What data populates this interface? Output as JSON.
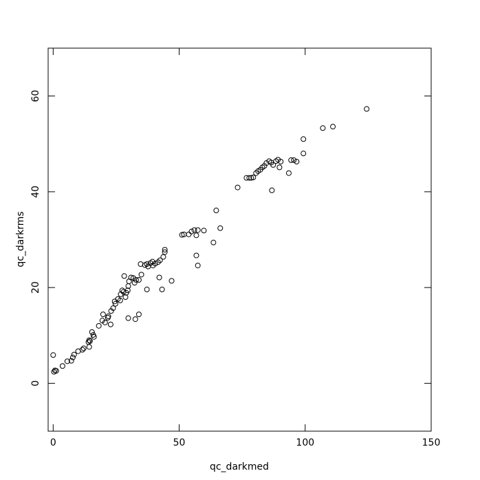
{
  "chart_data": {
    "type": "scatter",
    "x_label": "qc_darkmed",
    "y_label": "qc_darkrms",
    "xlim": [
      -2,
      150
    ],
    "ylim": [
      -10,
      70
    ],
    "xticks": [
      0,
      50,
      100,
      150
    ],
    "yticks": [
      0,
      20,
      40,
      60
    ],
    "color": "#000000",
    "x": [
      0,
      0.3,
      0.7,
      1.2,
      3.7,
      5.6,
      7.2,
      7.8,
      8.3,
      9.9,
      11.6,
      12.1,
      14,
      14.3,
      14.6,
      14.3,
      15.9,
      16.2,
      15.4,
      18.1,
      19.5,
      19.8,
      20.6,
      21.7,
      21.9,
      22.8,
      23,
      23.8,
      24.4,
      24.7,
      25.7,
      26.6,
      26.8,
      27.4,
      27.9,
      29,
      29.6,
      28.7,
      28.2,
      29.8,
      30.1,
      29.8,
      30.9,
      31.8,
      32.3,
      32.6,
      32.9,
      34,
      34,
      34.7,
      35,
      36.4,
      37.2,
      37.2,
      37.7,
      38.6,
      39.4,
      39.6,
      40.5,
      41.6,
      42.1,
      42.4,
      43.2,
      43.7,
      44.3,
      44.3,
      47,
      51.1,
      51.9,
      53.8,
      54.9,
      56,
      57.4,
      56.8,
      56.8,
      57.4,
      59.8,
      63.6,
      64.7,
      66.3,
      73.2,
      76.7,
      77.8,
      78.6,
      79.4,
      80.5,
      81.3,
      82.2,
      83,
      83.8,
      84.6,
      85.7,
      86.5,
      86.8,
      87.3,
      88.4,
      89.2,
      89.8,
      90.3,
      93.5,
      94.4,
      95.5,
      96.6,
      99.3,
      99.3,
      107,
      111,
      124.4
    ],
    "y": [
      5.9,
      2.4,
      2.7,
      2.6,
      3.6,
      4.6,
      4.7,
      5.4,
      6,
      6.7,
      7,
      7.3,
      8.6,
      9,
      8.8,
      7.6,
      10.1,
      9.7,
      10.7,
      12,
      13.1,
      14.4,
      12.7,
      13.7,
      14,
      12.3,
      15.1,
      15.7,
      17.1,
      16.6,
      17.6,
      17.3,
      18.6,
      19.4,
      19.1,
      18.9,
      19.4,
      18,
      22.4,
      20.3,
      21.3,
      13.6,
      22.1,
      22,
      21,
      13.4,
      21.6,
      14.4,
      21.6,
      24.9,
      22.7,
      24.7,
      19.6,
      24.9,
      24.4,
      25.1,
      25.4,
      24.6,
      25,
      25.3,
      22.1,
      25.7,
      19.6,
      26.4,
      27.4,
      27.9,
      21.4,
      31,
      31.1,
      31.1,
      31.7,
      32,
      32,
      30.9,
      26.7,
      24.6,
      31.9,
      29.4,
      36.1,
      32.4,
      40.9,
      42.9,
      42.9,
      42.9,
      43,
      43.9,
      44.3,
      44.6,
      45.1,
      45.4,
      46,
      46.4,
      46.1,
      40.3,
      45.6,
      46.4,
      46.7,
      45.1,
      46.3,
      43.9,
      46.6,
      46.6,
      46.3,
      48,
      51,
      53.3,
      53.6,
      57.3
    ]
  }
}
